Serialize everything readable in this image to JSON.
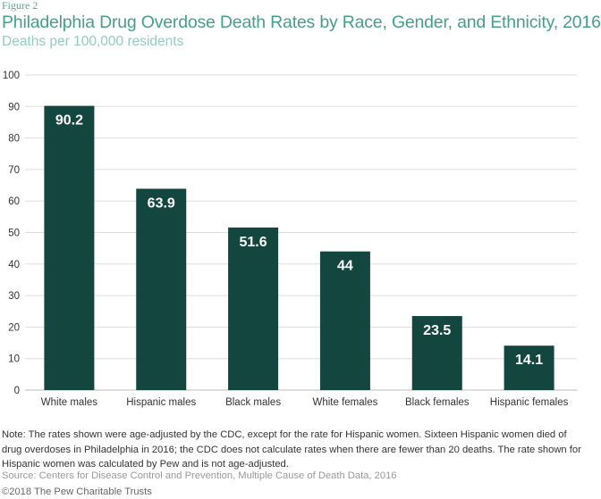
{
  "figure_label": "Figure 2",
  "colors": {
    "bar": "#12463f",
    "title": "#45a088",
    "subtitle": "#92cdbd",
    "grid": "#dddddd",
    "bar_label": "#ffffff"
  },
  "chart_data": {
    "type": "bar",
    "title": "Philadelphia Drug Overdose Death Rates by Race, Gender, and Ethnicity, 2016",
    "subtitle": "Deaths per 100,000 residents",
    "categories": [
      "White males",
      "Hispanic males",
      "Black males",
      "White females",
      "Black females",
      "Hispanic females"
    ],
    "values": [
      90.2,
      63.9,
      51.6,
      44,
      23.5,
      14.1
    ],
    "value_labels": [
      "90.2",
      "63.9",
      "51.6",
      "44",
      "23.5",
      "14.1"
    ],
    "ylim": [
      0,
      100
    ],
    "yticks": [
      "0",
      "10",
      "20",
      "30",
      "40",
      "50",
      "60",
      "70",
      "80",
      "90",
      "100"
    ],
    "grid": true,
    "xlabel": "",
    "ylabel": ""
  },
  "note": "Note: The rates shown were age-adjusted by the CDC, except for the rate for Hispanic women. Sixteen Hispanic women died of drug overdoses in Philadelphia in 2016; the CDC does not calculate rates when there are fewer than 20 deaths. The rate shown for Hispanic women was calculated by Pew and is not age-adjusted.",
  "source": "Source: Centers for Disease Control and Prevention, Multiple Cause of Death Data, 2016",
  "copyright": "©2018 The Pew Charitable Trusts"
}
